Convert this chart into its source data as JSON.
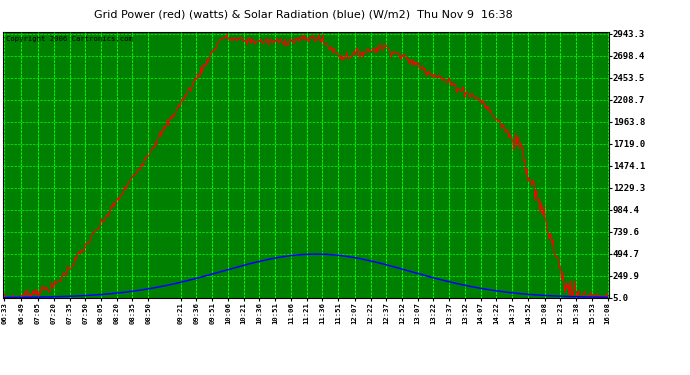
{
  "title": "Grid Power (red) (watts) & Solar Radiation (blue) (W/m2)  Thu Nov 9  16:38",
  "copyright_text": "Copyright 2006 Cartronics.com",
  "background_color": "#008000",
  "grid_color": "#00FF00",
  "ytick_labels": [
    "5.0",
    "249.9",
    "494.7",
    "739.6",
    "984.4",
    "1229.3",
    "1474.1",
    "1719.0",
    "1963.8",
    "2208.7",
    "2453.5",
    "2698.4",
    "2943.3"
  ],
  "ytick_values": [
    5.0,
    249.9,
    494.7,
    739.6,
    984.4,
    1229.3,
    1474.1,
    1719.0,
    1963.8,
    2208.7,
    2453.5,
    2698.4,
    2943.3
  ],
  "ymin": 5.0,
  "ymax": 2943.3,
  "xtick_labels": [
    "06:33",
    "06:49",
    "07:05",
    "07:20",
    "07:35",
    "07:50",
    "08:05",
    "08:20",
    "08:35",
    "08:50",
    "09:21",
    "09:36",
    "09:51",
    "10:06",
    "10:21",
    "10:36",
    "10:51",
    "11:06",
    "11:21",
    "11:36",
    "11:51",
    "12:07",
    "12:22",
    "12:37",
    "12:52",
    "13:07",
    "13:22",
    "13:37",
    "13:52",
    "14:07",
    "14:22",
    "14:37",
    "14:52",
    "15:08",
    "15:23",
    "15:38",
    "15:53",
    "16:08"
  ],
  "red_line_color": "#FF0000",
  "blue_line_color": "#0000FF",
  "tick_label_color": "#000000",
  "border_color": "#000000",
  "outer_bg": "#ffffff",
  "title_color": "#000000"
}
